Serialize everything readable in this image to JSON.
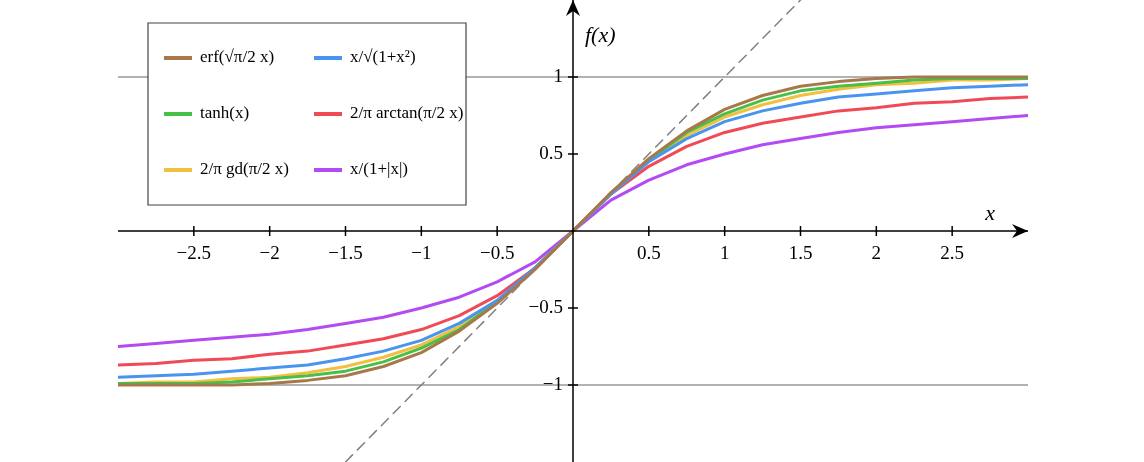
{
  "chart_data": {
    "type": "line",
    "xlabel": "x",
    "ylabel": "f(x)",
    "x": [
      -3,
      -2.75,
      -2.5,
      -2.25,
      -2,
      -1.75,
      -1.5,
      -1.25,
      -1,
      -0.75,
      -0.5,
      -0.25,
      0,
      0.25,
      0.5,
      0.75,
      1,
      1.25,
      1.5,
      1.75,
      2,
      2.25,
      2.5,
      2.75,
      3
    ],
    "series": [
      {
        "name": "erf(√π/2 x)",
        "color": "#a8784a",
        "values": [
          -1,
          -1,
          -1,
          -1,
          -0.99,
          -0.97,
          -0.94,
          -0.88,
          -0.79,
          -0.65,
          -0.47,
          -0.25,
          0,
          0.25,
          0.47,
          0.65,
          0.79,
          0.88,
          0.94,
          0.97,
          0.99,
          1,
          1,
          1,
          1
        ]
      },
      {
        "name": "x/√(1+x²)",
        "color": "#4a94f0",
        "values": [
          -0.95,
          -0.94,
          -0.93,
          -0.91,
          -0.89,
          -0.87,
          -0.83,
          -0.78,
          -0.71,
          -0.6,
          -0.45,
          -0.24,
          0,
          0.24,
          0.45,
          0.6,
          0.71,
          0.78,
          0.83,
          0.87,
          0.89,
          0.91,
          0.93,
          0.94,
          0.95
        ]
      },
      {
        "name": "tanh(x)",
        "color": "#48bf48",
        "values": [
          -0.99,
          -0.99,
          -0.99,
          -0.98,
          -0.96,
          -0.94,
          -0.91,
          -0.85,
          -0.76,
          -0.64,
          -0.46,
          -0.24,
          0,
          0.24,
          0.46,
          0.64,
          0.76,
          0.85,
          0.91,
          0.94,
          0.96,
          0.98,
          0.99,
          0.99,
          0.99
        ]
      },
      {
        "name": "2/π arctan(π/2 x)",
        "color": "#f04a55",
        "values": [
          -0.87,
          -0.86,
          -0.84,
          -0.83,
          -0.8,
          -0.78,
          -0.74,
          -0.7,
          -0.64,
          -0.55,
          -0.42,
          -0.24,
          0,
          0.24,
          0.42,
          0.55,
          0.64,
          0.7,
          0.74,
          0.78,
          0.8,
          0.83,
          0.84,
          0.86,
          0.87
        ]
      },
      {
        "name": "2/π gd(π/2 x)",
        "color": "#f2c040",
        "values": [
          -0.99,
          -0.98,
          -0.98,
          -0.96,
          -0.95,
          -0.92,
          -0.88,
          -0.82,
          -0.74,
          -0.62,
          -0.46,
          -0.24,
          0,
          0.24,
          0.46,
          0.62,
          0.74,
          0.82,
          0.88,
          0.92,
          0.95,
          0.96,
          0.98,
          0.98,
          0.99
        ]
      },
      {
        "name": "x/(1+|x|)",
        "color": "#b44af2",
        "values": [
          -0.75,
          -0.73,
          -0.71,
          -0.69,
          -0.67,
          -0.64,
          -0.6,
          -0.56,
          -0.5,
          -0.43,
          -0.33,
          -0.2,
          0,
          0.2,
          0.33,
          0.43,
          0.5,
          0.56,
          0.6,
          0.64,
          0.67,
          0.69,
          0.71,
          0.73,
          0.75
        ]
      },
      {
        "type": "line",
        "x": [
          -1.5,
          1.5
        ],
        "values": [
          -1.5,
          1.5
        ],
        "color": "#808080",
        "line_style": "dashed"
      }
    ],
    "ref_lines": [
      {
        "axis": "y",
        "value": 1,
        "color": "#999999"
      },
      {
        "axis": "y",
        "value": -1,
        "color": "#999999"
      }
    ],
    "xlim": [
      -3,
      3
    ],
    "ylim": [
      -1.5,
      1.5
    ],
    "xticks": [
      {
        "value": -2.5,
        "label": "−2.5"
      },
      {
        "value": -2,
        "label": "−2"
      },
      {
        "value": -1.5,
        "label": "−1.5"
      },
      {
        "value": -1,
        "label": "−1"
      },
      {
        "value": -0.5,
        "label": "−0.5"
      },
      0.5,
      1,
      1.5,
      2,
      2.5
    ],
    "yticks": [
      {
        "value": -1,
        "label": "−1"
      },
      {
        "value": -0.5,
        "label": "−0.5"
      },
      0.5,
      1
    ],
    "legend": "top left",
    "marker": "none",
    "line_style": "solid"
  }
}
